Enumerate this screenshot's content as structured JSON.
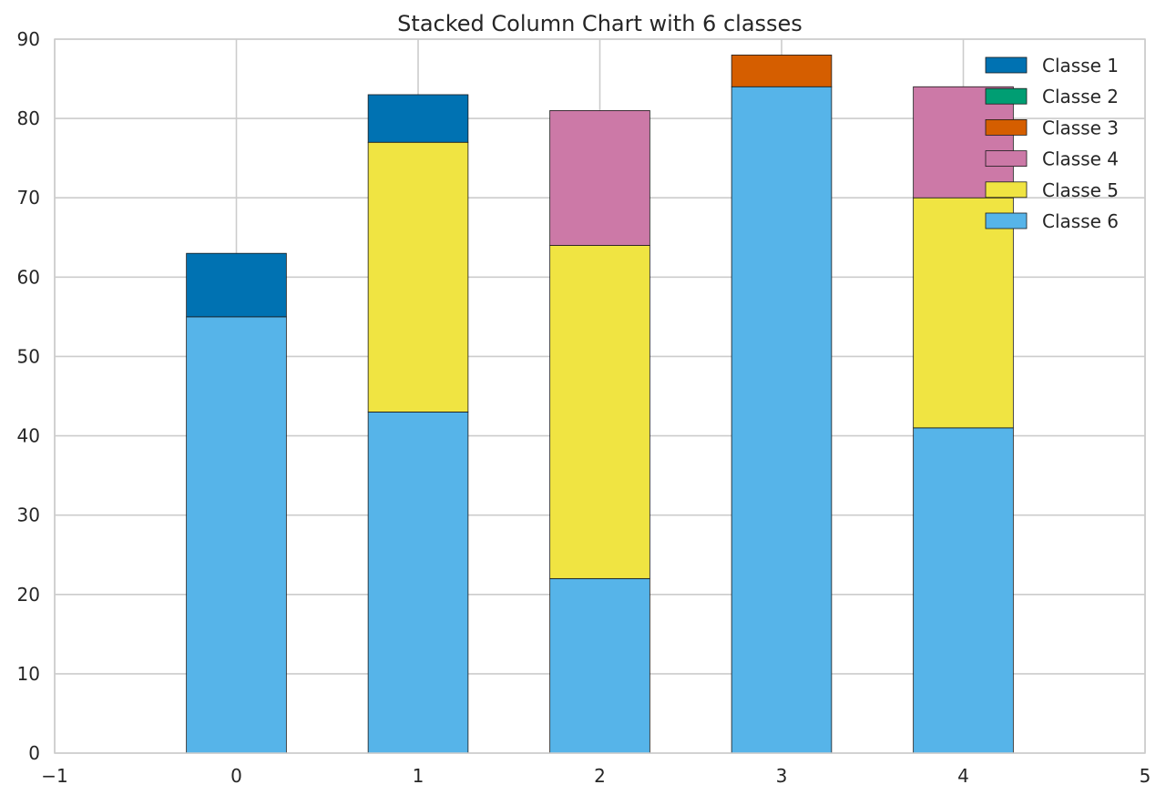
{
  "chart_data": {
    "type": "bar",
    "stacked": true,
    "title": "Stacked Column Chart with 6 classes",
    "xlabel": "",
    "ylabel": "",
    "x": [
      0,
      1,
      2,
      3,
      4
    ],
    "xlim": [
      -1,
      5
    ],
    "ylim": [
      0,
      90
    ],
    "xticks": [
      -1,
      0,
      1,
      2,
      3,
      4,
      5
    ],
    "xtick_labels": [
      "−1",
      "0",
      "1",
      "2",
      "3",
      "4",
      "5"
    ],
    "yticks": [
      0,
      10,
      20,
      30,
      40,
      50,
      60,
      70,
      80,
      90
    ],
    "ytick_labels": [
      "0",
      "10",
      "20",
      "30",
      "40",
      "50",
      "60",
      "70",
      "80",
      "90"
    ],
    "grid": true,
    "legend_position": "top-right",
    "stack_order": [
      "Classe 6",
      "Classe 5",
      "Classe 4",
      "Classe 3",
      "Classe 2",
      "Classe 1"
    ],
    "series": [
      {
        "name": "Classe 1",
        "color": "#0072b2",
        "values": [
          8,
          6,
          0,
          0,
          0
        ]
      },
      {
        "name": "Classe 2",
        "color": "#009e73",
        "values": [
          0,
          0,
          0,
          0,
          0
        ]
      },
      {
        "name": "Classe 3",
        "color": "#d55e00",
        "values": [
          0,
          0,
          0,
          4,
          0
        ]
      },
      {
        "name": "Classe 4",
        "color": "#cc79a7",
        "values": [
          0,
          0,
          17,
          0,
          14
        ]
      },
      {
        "name": "Classe 5",
        "color": "#f0e442",
        "values": [
          0,
          34,
          42,
          0,
          29
        ]
      },
      {
        "name": "Classe 6",
        "color": "#56b4e9",
        "values": [
          55,
          43,
          22,
          84,
          41
        ]
      }
    ]
  }
}
